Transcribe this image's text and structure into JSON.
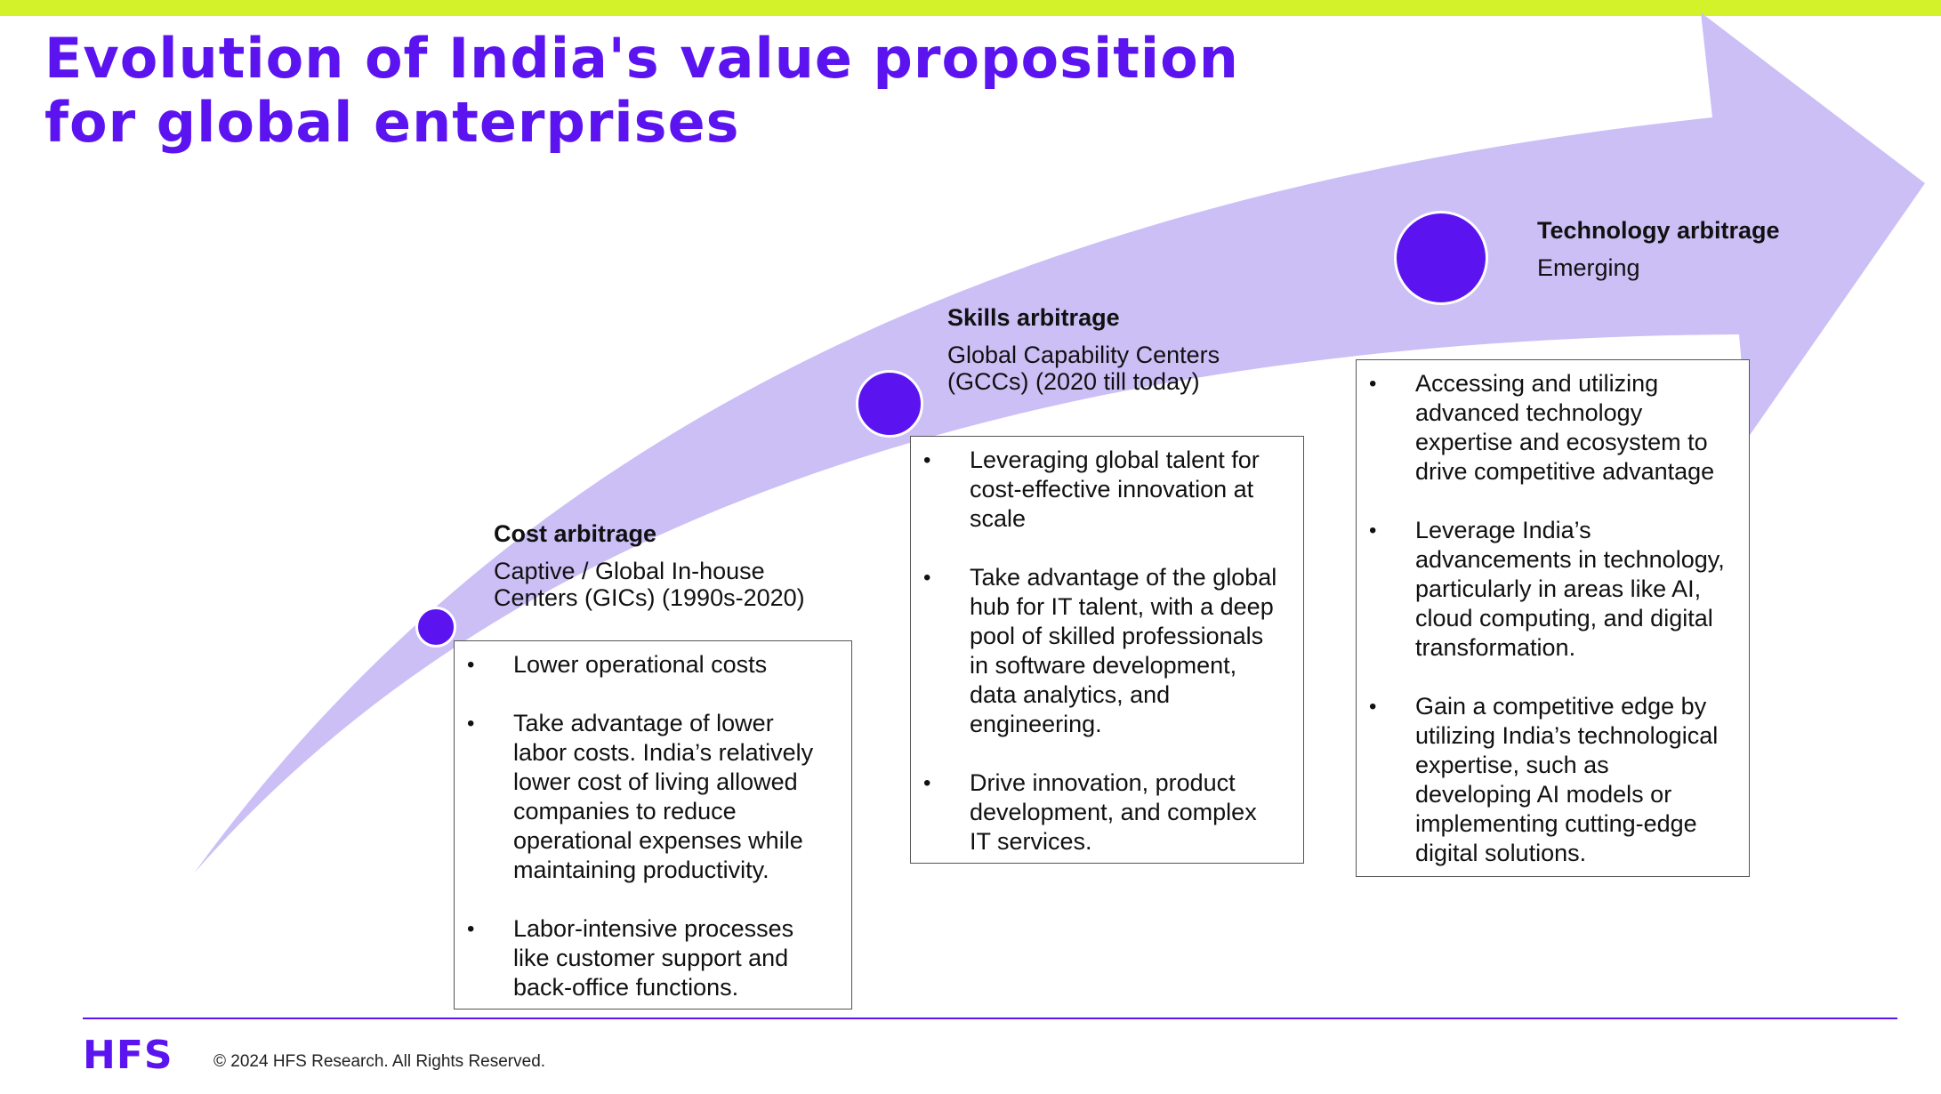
{
  "title": {
    "lines": [
      "Evolution of India's value proposition",
      "for global enterprises"
    ]
  },
  "colors": {
    "accent": "#5b14f0",
    "arrow": "#cbbff6",
    "top_bar": "#d4f22a"
  },
  "stages": [
    {
      "name": "Cost arbitrage",
      "subtitle_lines": [
        "Captive / Global In-house",
        "Centers (GICs) (1990s-2020)"
      ],
      "bullets": [
        {
          "lines": [
            "Lower operational costs"
          ]
        },
        {
          "lines": [
            "Take advantage of lower",
            "labor costs. India’s relatively",
            "lower cost of living allowed",
            "companies to reduce",
            "operational expenses while",
            "maintaining productivity."
          ]
        },
        {
          "lines": [
            "Labor-intensive processes",
            "like customer support and",
            "back-office functions."
          ]
        }
      ]
    },
    {
      "name": "Skills arbitrage",
      "subtitle_lines": [
        "Global Capability Centers",
        "(GCCs) (2020 till today)"
      ],
      "bullets": [
        {
          "lines": [
            "Leveraging global talent for",
            "cost-effective innovation at",
            "scale"
          ]
        },
        {
          "lines": [
            "Take advantage of the global",
            "hub for IT talent, with a deep",
            "pool of skilled professionals",
            "in software development,",
            "data analytics, and",
            "engineering."
          ]
        },
        {
          "lines": [
            "Drive innovation, product",
            "development, and complex",
            "IT services."
          ]
        }
      ]
    },
    {
      "name": "Technology arbitrage",
      "subtitle_lines": [
        "Emerging"
      ],
      "bullets": [
        {
          "lines": [
            "Accessing and utilizing",
            "advanced technology",
            "expertise and ecosystem to",
            "drive competitive advantage"
          ]
        },
        {
          "lines": [
            "Leverage India’s",
            "advancements in technology,",
            "particularly in areas like AI,",
            "cloud computing, and digital",
            "transformation."
          ]
        },
        {
          "lines": [
            "Gain a competitive edge by",
            "utilizing India’s technological",
            "expertise, such as",
            "developing AI models or",
            "implementing cutting-edge",
            "digital solutions."
          ]
        }
      ]
    }
  ],
  "bullet_glyph": "•",
  "footer": {
    "logo": "HFS",
    "copyright": "© 2024 HFS Research. All Rights Reserved."
  }
}
